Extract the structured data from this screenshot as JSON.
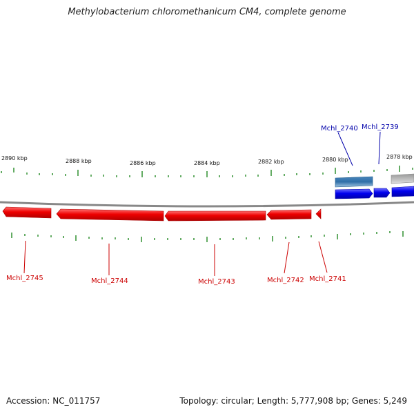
{
  "title": "Methylobacterium chloromethanicum CM4, complete genome",
  "footer": {
    "accession": "Accession: NC_011757",
    "summary": "Topology: circular; Length: 5,777,908 bp; Genes: 5,249"
  },
  "colors": {
    "forward_gene": "#0000ee",
    "reverse_gene": "#ee0000",
    "forward_label": "#0000aa",
    "reverse_label": "#cc0000",
    "tick": "#228822",
    "backbone": "#888888",
    "feature_a": "#2f6fa8",
    "feature_b": "#aaaaaa"
  },
  "scale_labels": [
    "2890 kbp",
    "2888 kbp",
    "2886 kbp",
    "2884 kbp",
    "2882 kbp",
    "2880 kbp",
    "2878 kbp"
  ],
  "forward_genes": [
    {
      "label": "Mchl_2740"
    },
    {
      "label": "Mchl_2739"
    }
  ],
  "reverse_genes": [
    {
      "label": "Mchl_2745"
    },
    {
      "label": "Mchl_2744"
    },
    {
      "label": "Mchl_2743"
    },
    {
      "label": "Mchl_2742"
    },
    {
      "label": "Mchl_2741"
    }
  ]
}
